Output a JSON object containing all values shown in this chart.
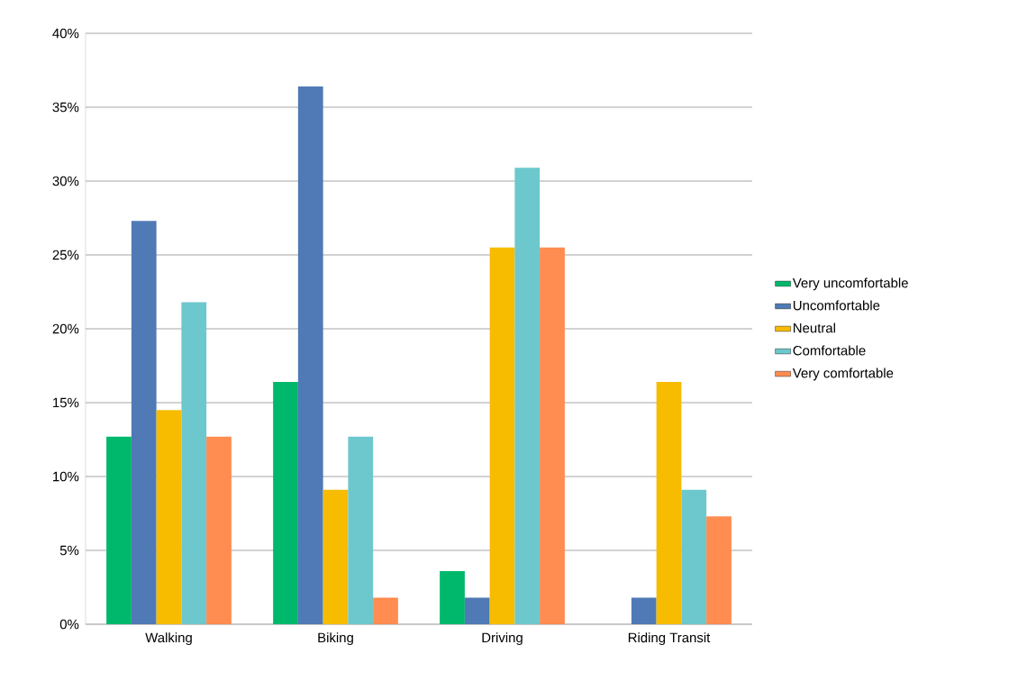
{
  "chart_data": {
    "type": "bar",
    "categories": [
      "Walking",
      "Biking",
      "Driving",
      "Riding Transit"
    ],
    "series": [
      {
        "name": "Very uncomfortable",
        "color": "#00b86b",
        "values": [
          12.7,
          16.4,
          3.6,
          0
        ]
      },
      {
        "name": "Uncomfortable",
        "color": "#4f7ab5",
        "values": [
          27.3,
          36.4,
          1.8,
          1.8
        ]
      },
      {
        "name": "Neutral",
        "color": "#f7bb00",
        "values": [
          14.5,
          9.1,
          25.5,
          16.4
        ]
      },
      {
        "name": "Comfortable",
        "color": "#6cc8cc",
        "values": [
          21.8,
          12.7,
          30.9,
          9.1
        ]
      },
      {
        "name": "Very comfortable",
        "color": "#ff8c50",
        "values": [
          12.7,
          1.8,
          25.5,
          7.3
        ]
      }
    ],
    "ylim": [
      0,
      40
    ],
    "yticks": [
      {
        "value": 0,
        "label": "0%"
      },
      {
        "value": 5,
        "label": "5%"
      },
      {
        "value": 10,
        "label": "10%"
      },
      {
        "value": 15,
        "label": "15%"
      },
      {
        "value": 20,
        "label": "20%"
      },
      {
        "value": 25,
        "label": "25%"
      },
      {
        "value": 30,
        "label": "30%"
      },
      {
        "value": 35,
        "label": "35%"
      },
      {
        "value": 40,
        "label": "40%"
      }
    ],
    "grid": "y",
    "legend": "right"
  }
}
